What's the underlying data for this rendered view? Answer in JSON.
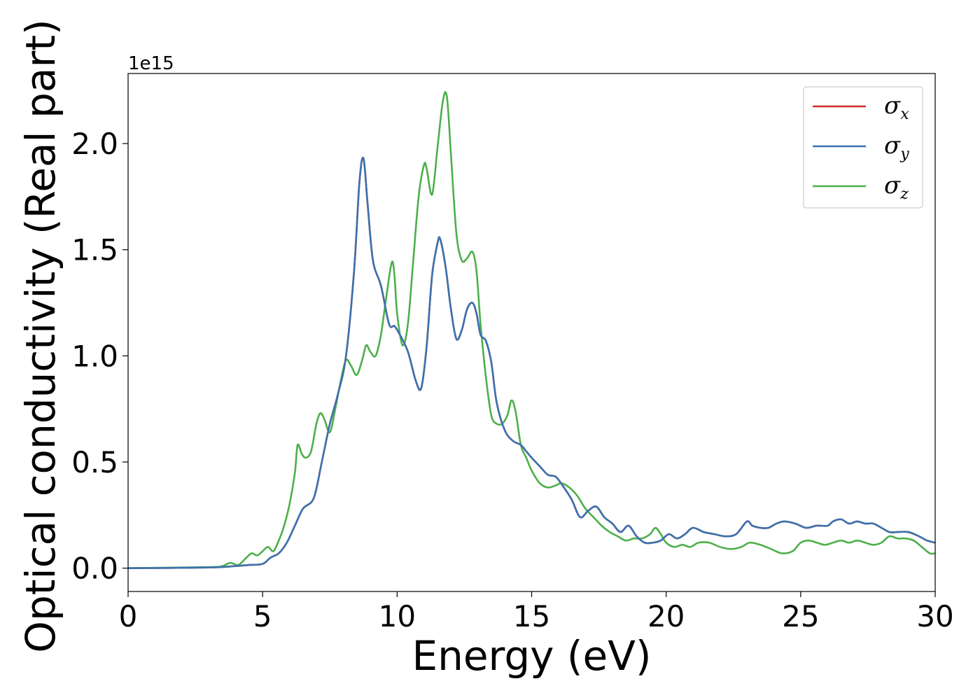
{
  "chart_data": {
    "type": "line",
    "title": "",
    "xlabel": "Energy (eV)",
    "ylabel": "Optical conductivity (Real part)",
    "y_offset_label": "1e15",
    "xlim": [
      0,
      30
    ],
    "ylim": [
      -0.11,
      2.33
    ],
    "x_ticks": [
      0,
      5,
      10,
      15,
      20,
      25,
      30
    ],
    "x_tick_labels": [
      "0",
      "5",
      "10",
      "15",
      "20",
      "25",
      "30"
    ],
    "y_ticks": [
      0.0,
      0.5,
      1.0,
      1.5,
      2.0
    ],
    "y_tick_labels": [
      "0.0",
      "0.5",
      "1.0",
      "1.5",
      "2.0"
    ],
    "grid": false,
    "legend_position": "top-right",
    "series": [
      {
        "name": "σx",
        "legend_main": "σ",
        "legend_sub": "x",
        "color": "#d62728",
        "hidden_under": "σy",
        "x": [
          0,
          3,
          4,
          4.5,
          5,
          5.3,
          5.6,
          5.9,
          6.2,
          6.5,
          6.9,
          7.2,
          7.5,
          7.8,
          8.1,
          8.4,
          8.6,
          8.75,
          8.9,
          9.1,
          9.4,
          9.7,
          9.9,
          10.1,
          10.4,
          10.7,
          10.9,
          11.1,
          11.3,
          11.5,
          11.6,
          11.8,
          12.0,
          12.2,
          12.4,
          12.6,
          12.8,
          12.95,
          13.1,
          13.3,
          13.5,
          13.7,
          14.0,
          14.3,
          14.6,
          14.8,
          15.0,
          15.3,
          15.6,
          15.9,
          16.2,
          16.5,
          16.8,
          17.1,
          17.4,
          17.7,
          18.0,
          18.3,
          18.6,
          18.9,
          19.2,
          19.5,
          19.8,
          20.1,
          20.4,
          20.7,
          21.0,
          21.4,
          21.8,
          22.2,
          22.6,
          23.0,
          23.2,
          23.5,
          23.8,
          24.1,
          24.4,
          24.8,
          25.2,
          25.6,
          26.0,
          26.2,
          26.5,
          26.8,
          27.1,
          27.4,
          27.7,
          28.0,
          28.3,
          28.6,
          29.0,
          29.4,
          29.7,
          30.0
        ],
        "y": [
          0,
          0.003,
          0.01,
          0.015,
          0.02,
          0.05,
          0.07,
          0.12,
          0.2,
          0.28,
          0.33,
          0.5,
          0.68,
          0.82,
          1.0,
          1.4,
          1.82,
          1.93,
          1.72,
          1.45,
          1.33,
          1.15,
          1.14,
          1.1,
          1.02,
          0.88,
          0.85,
          1.05,
          1.38,
          1.53,
          1.55,
          1.42,
          1.22,
          1.08,
          1.12,
          1.22,
          1.25,
          1.2,
          1.1,
          1.07,
          0.97,
          0.78,
          0.65,
          0.6,
          0.58,
          0.55,
          0.52,
          0.48,
          0.44,
          0.43,
          0.38,
          0.32,
          0.24,
          0.27,
          0.29,
          0.24,
          0.21,
          0.17,
          0.2,
          0.15,
          0.12,
          0.12,
          0.13,
          0.16,
          0.14,
          0.16,
          0.19,
          0.17,
          0.16,
          0.15,
          0.16,
          0.22,
          0.2,
          0.19,
          0.19,
          0.21,
          0.22,
          0.21,
          0.19,
          0.2,
          0.2,
          0.22,
          0.23,
          0.21,
          0.22,
          0.21,
          0.21,
          0.19,
          0.17,
          0.17,
          0.17,
          0.15,
          0.13,
          0.12
        ]
      },
      {
        "name": "σy",
        "legend_main": "σ",
        "legend_sub": "y",
        "color": "#3b72b0",
        "x": [
          0,
          3,
          4,
          4.5,
          5,
          5.3,
          5.6,
          5.9,
          6.2,
          6.5,
          6.9,
          7.2,
          7.5,
          7.8,
          8.1,
          8.4,
          8.6,
          8.75,
          8.9,
          9.1,
          9.4,
          9.7,
          9.9,
          10.1,
          10.4,
          10.7,
          10.9,
          11.1,
          11.3,
          11.5,
          11.6,
          11.8,
          12.0,
          12.2,
          12.4,
          12.6,
          12.8,
          12.95,
          13.1,
          13.3,
          13.5,
          13.7,
          14.0,
          14.3,
          14.6,
          14.8,
          15.0,
          15.3,
          15.6,
          15.9,
          16.2,
          16.5,
          16.8,
          17.1,
          17.4,
          17.7,
          18.0,
          18.3,
          18.6,
          18.9,
          19.2,
          19.5,
          19.8,
          20.1,
          20.4,
          20.7,
          21.0,
          21.4,
          21.8,
          22.2,
          22.6,
          23.0,
          23.2,
          23.5,
          23.8,
          24.1,
          24.4,
          24.8,
          25.2,
          25.6,
          26.0,
          26.2,
          26.5,
          26.8,
          27.1,
          27.4,
          27.7,
          28.0,
          28.3,
          28.6,
          29.0,
          29.4,
          29.7,
          30.0
        ],
        "y": [
          0,
          0.003,
          0.01,
          0.015,
          0.02,
          0.05,
          0.07,
          0.12,
          0.2,
          0.28,
          0.33,
          0.5,
          0.68,
          0.82,
          1.0,
          1.4,
          1.82,
          1.93,
          1.72,
          1.45,
          1.33,
          1.15,
          1.14,
          1.1,
          1.02,
          0.88,
          0.85,
          1.05,
          1.38,
          1.53,
          1.55,
          1.42,
          1.22,
          1.08,
          1.12,
          1.22,
          1.25,
          1.2,
          1.1,
          1.07,
          0.97,
          0.78,
          0.65,
          0.6,
          0.58,
          0.55,
          0.52,
          0.48,
          0.44,
          0.43,
          0.38,
          0.32,
          0.24,
          0.27,
          0.29,
          0.24,
          0.21,
          0.17,
          0.2,
          0.15,
          0.12,
          0.12,
          0.13,
          0.16,
          0.14,
          0.16,
          0.19,
          0.17,
          0.16,
          0.15,
          0.16,
          0.22,
          0.2,
          0.19,
          0.19,
          0.21,
          0.22,
          0.21,
          0.19,
          0.2,
          0.2,
          0.22,
          0.23,
          0.21,
          0.22,
          0.21,
          0.21,
          0.19,
          0.17,
          0.17,
          0.17,
          0.15,
          0.13,
          0.12
        ]
      },
      {
        "name": "σz",
        "legend_main": "σ",
        "legend_sub": "z",
        "color": "#4daf4a",
        "x": [
          0,
          3,
          3.5,
          3.8,
          4.1,
          4.4,
          4.6,
          4.8,
          5.0,
          5.2,
          5.4,
          5.6,
          5.8,
          6.0,
          6.2,
          6.3,
          6.45,
          6.6,
          6.8,
          7.0,
          7.15,
          7.3,
          7.5,
          7.7,
          7.9,
          8.1,
          8.3,
          8.5,
          8.7,
          8.85,
          9.0,
          9.2,
          9.4,
          9.6,
          9.8,
          9.9,
          10.0,
          10.2,
          10.4,
          10.6,
          10.8,
          11.0,
          11.1,
          11.3,
          11.5,
          11.7,
          11.85,
          12.0,
          12.2,
          12.4,
          12.6,
          12.8,
          12.95,
          13.1,
          13.3,
          13.5,
          13.7,
          13.9,
          14.1,
          14.25,
          14.4,
          14.6,
          14.8,
          15.0,
          15.3,
          15.6,
          15.9,
          16.1,
          16.4,
          16.7,
          17.0,
          17.3,
          17.6,
          17.9,
          18.2,
          18.5,
          18.8,
          19.1,
          19.4,
          19.6,
          19.8,
          20.0,
          20.3,
          20.6,
          20.9,
          21.2,
          21.6,
          22.0,
          22.4,
          22.8,
          23.1,
          23.5,
          23.9,
          24.3,
          24.7,
          25.0,
          25.3,
          25.6,
          25.9,
          26.2,
          26.5,
          26.8,
          27.1,
          27.4,
          27.7,
          28.0,
          28.3,
          28.6,
          28.9,
          29.2,
          29.5,
          29.8,
          30.0
        ],
        "y": [
          0,
          0.005,
          0.01,
          0.025,
          0.015,
          0.05,
          0.07,
          0.06,
          0.08,
          0.1,
          0.08,
          0.13,
          0.2,
          0.3,
          0.45,
          0.58,
          0.54,
          0.52,
          0.55,
          0.68,
          0.73,
          0.7,
          0.64,
          0.75,
          0.88,
          0.98,
          0.95,
          0.91,
          0.98,
          1.05,
          1.02,
          1.0,
          1.1,
          1.28,
          1.44,
          1.38,
          1.2,
          1.05,
          1.15,
          1.45,
          1.75,
          1.9,
          1.88,
          1.76,
          1.98,
          2.2,
          2.22,
          1.95,
          1.58,
          1.45,
          1.46,
          1.49,
          1.4,
          1.15,
          0.9,
          0.72,
          0.68,
          0.68,
          0.72,
          0.79,
          0.74,
          0.58,
          0.52,
          0.46,
          0.4,
          0.38,
          0.39,
          0.4,
          0.38,
          0.34,
          0.28,
          0.24,
          0.2,
          0.17,
          0.15,
          0.13,
          0.14,
          0.14,
          0.16,
          0.19,
          0.16,
          0.12,
          0.1,
          0.11,
          0.1,
          0.12,
          0.12,
          0.1,
          0.09,
          0.1,
          0.12,
          0.11,
          0.09,
          0.07,
          0.08,
          0.12,
          0.13,
          0.12,
          0.11,
          0.12,
          0.13,
          0.12,
          0.13,
          0.12,
          0.11,
          0.12,
          0.15,
          0.14,
          0.14,
          0.13,
          0.1,
          0.07,
          0.07
        ]
      }
    ]
  }
}
